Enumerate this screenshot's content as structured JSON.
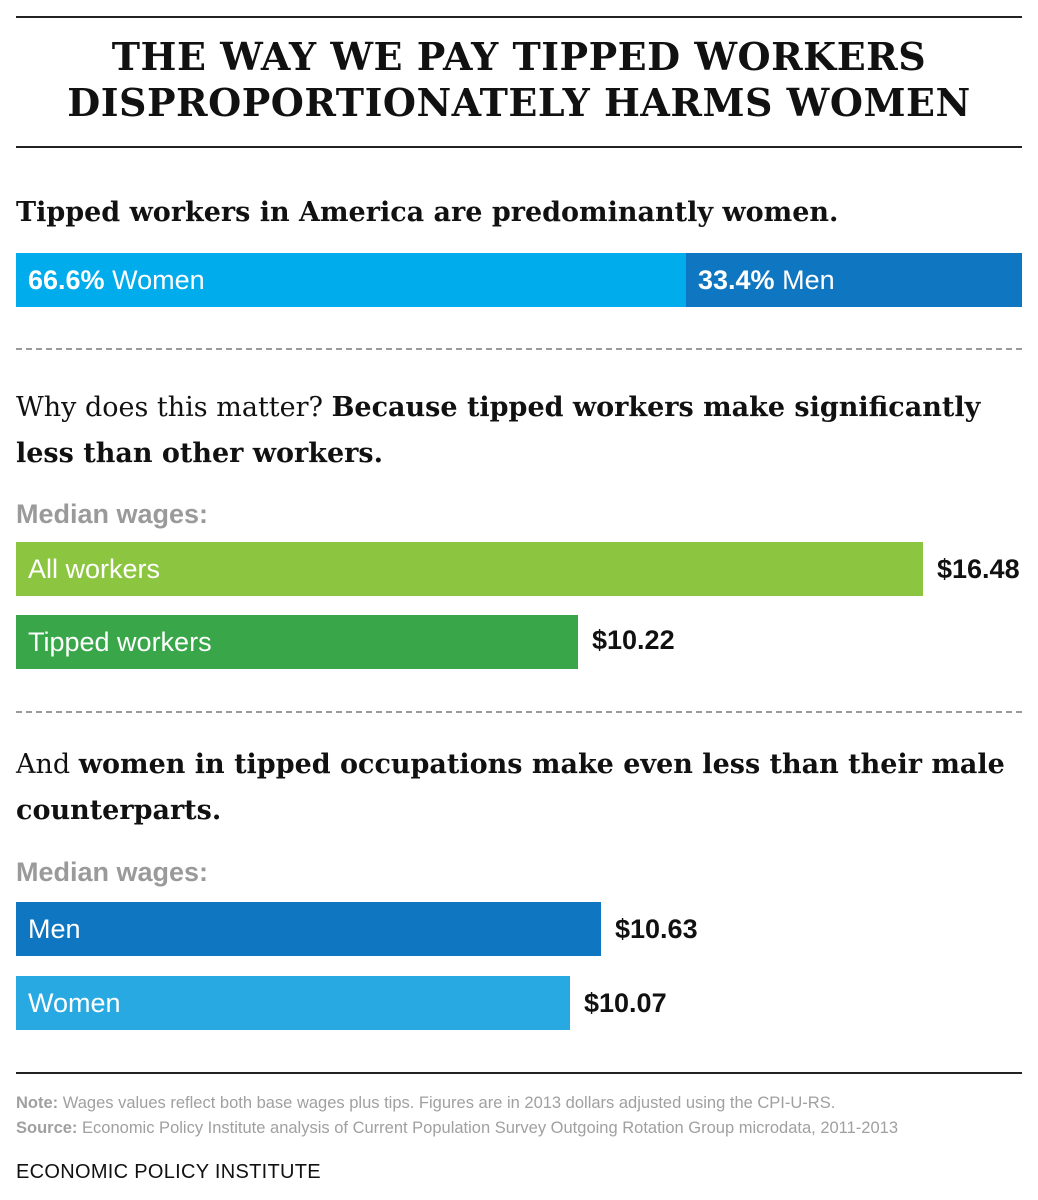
{
  "title": {
    "line1": "THE WAY WE PAY TIPPED WORKERS",
    "line2": "DISPROPORTIONATELY HARMS WOMEN"
  },
  "section1": {
    "heading": "Tipped workers in America are predominantly women."
  },
  "section2": {
    "heading_light": "Why does this matter?",
    "heading_bold": "Because tipped workers make significantly less than other workers.",
    "sublabel": "Median wages:"
  },
  "section3": {
    "heading_light": "And",
    "heading_bold": "women in tipped occupations make even less than their male counterparts.",
    "sublabel": "Median wages:"
  },
  "chart_data": [
    {
      "type": "bar",
      "orientation": "horizontal-stacked-100",
      "title": "Tipped workers in America are predominantly women.",
      "series": [
        {
          "name": "Women",
          "value": 66.6,
          "display": "66.6%",
          "color": "#00acec"
        },
        {
          "name": "Men",
          "value": 33.4,
          "display": "33.4%",
          "color": "#0f77c1"
        }
      ]
    },
    {
      "type": "bar",
      "orientation": "horizontal",
      "title": "Median wages:",
      "categories": [
        "All workers",
        "Tipped workers"
      ],
      "values": [
        16.48,
        10.22
      ],
      "labels": [
        "$16.48",
        "$10.22"
      ],
      "colors": [
        "#8cc540",
        "#3aa64a"
      ],
      "xlim": [
        0,
        16.48
      ]
    },
    {
      "type": "bar",
      "orientation": "horizontal",
      "title": "Median wages:",
      "categories": [
        "Men",
        "Women"
      ],
      "values": [
        10.63,
        10.07
      ],
      "labels": [
        "$10.63",
        "$10.07"
      ],
      "colors": [
        "#0f77c1",
        "#28a9e1"
      ],
      "xlim": [
        0,
        16.48
      ]
    }
  ],
  "footer": {
    "note_label": "Note:",
    "note_text": "Wages values reflect both base wages plus tips. Figures are in 2013 dollars adjusted using the CPI-U-RS.",
    "source_label": "Source:",
    "source_text": "Economic Policy Institute analysis of Current Population Survey Outgoing Rotation Group microdata, 2011-2013",
    "organization": "ECONOMIC POLICY INSTITUTE"
  }
}
